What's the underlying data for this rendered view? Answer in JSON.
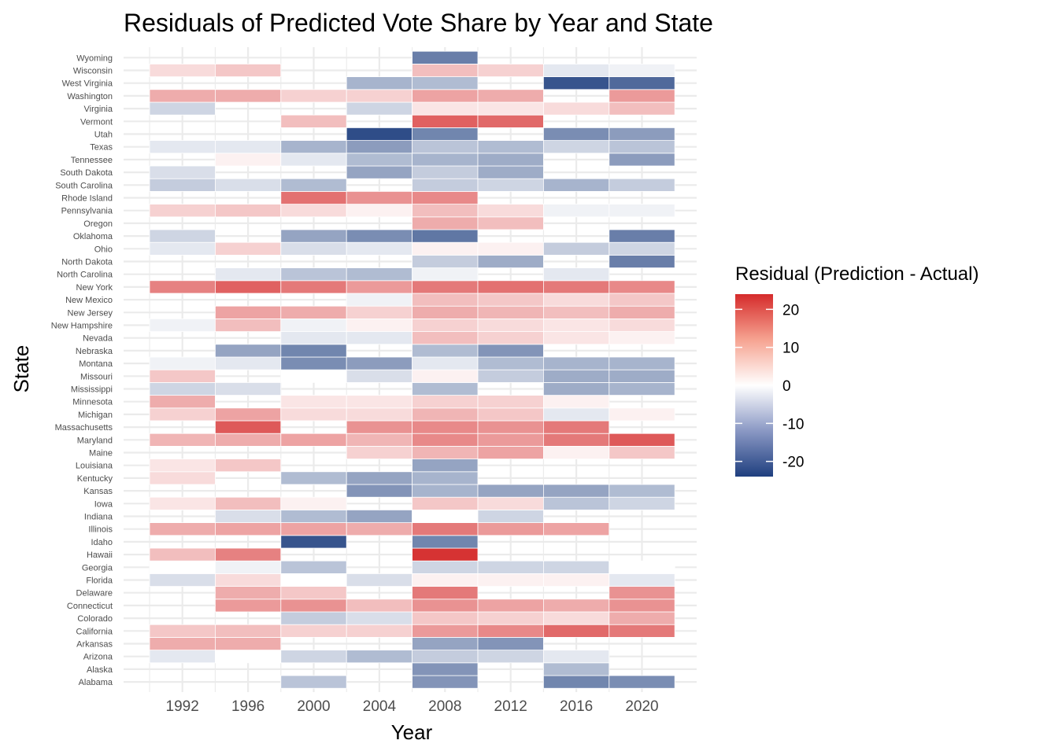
{
  "chart_data": {
    "type": "heatmap",
    "title": "Residuals of Predicted Vote Share by Year and State",
    "xlabel": "Year",
    "ylabel": "State",
    "legend_title": "Residual (Prediction - Actual)",
    "legend_ticks": [
      20,
      10,
      0,
      -10,
      -20
    ],
    "legend_tick_labels": [
      "20",
      "10",
      "0",
      "-10",
      "-20"
    ],
    "value_range": [
      -24,
      24
    ],
    "colors": {
      "low": "#1f3f7f",
      "mid": "#ffffff",
      "high": "#d52b2b"
    },
    "legend_placement": "right",
    "x": [
      "1992",
      "1996",
      "2000",
      "2004",
      "2008",
      "2012",
      "2016",
      "2020"
    ],
    "y": [
      "Alabama",
      "Alaska",
      "Arizona",
      "Arkansas",
      "California",
      "Colorado",
      "Connecticut",
      "Delaware",
      "Florida",
      "Georgia",
      "Hawaii",
      "Idaho",
      "Illinois",
      "Indiana",
      "Iowa",
      "Kansas",
      "Kentucky",
      "Louisiana",
      "Maine",
      "Maryland",
      "Massachusetts",
      "Michigan",
      "Minnesota",
      "Mississippi",
      "Missouri",
      "Montana",
      "Nebraska",
      "Nevada",
      "New Hampshire",
      "New Jersey",
      "New Mexico",
      "New York",
      "North Carolina",
      "North Dakota",
      "Ohio",
      "Oklahoma",
      "Oregon",
      "Pennsylvania",
      "Rhode Island",
      "South Carolina",
      "South Dakota",
      "Tennessee",
      "Texas",
      "Utah",
      "Vermont",
      "Virginia",
      "Washington",
      "West Virginia",
      "Wisconsin",
      "Wyoming"
    ],
    "values": {
      "Alabama": [
        null,
        null,
        -6,
        null,
        -12,
        null,
        -14,
        -13
      ],
      "Alaska": [
        null,
        null,
        null,
        null,
        -12,
        null,
        -7,
        null
      ],
      "Arizona": [
        -2,
        0,
        -4,
        -7,
        -5,
        -4,
        -2,
        null
      ],
      "Arkansas": [
        8,
        8,
        null,
        null,
        -10,
        -12,
        null,
        null
      ],
      "California": [
        5,
        6,
        4,
        4,
        10,
        12,
        16,
        14
      ],
      "Colorado": [
        null,
        null,
        -5,
        -3,
        5,
        4,
        3,
        8
      ],
      "Connecticut": [
        null,
        10,
        11,
        6,
        11,
        9,
        8,
        11
      ],
      "Delaware": [
        null,
        8,
        5,
        null,
        14,
        null,
        null,
        11
      ],
      "Florida": [
        -3,
        3,
        0,
        -3,
        1,
        1,
        1,
        -2
      ],
      "Georgia": [
        0,
        -1,
        -6,
        null,
        -4,
        -4,
        -4,
        0
      ],
      "Hawaii": [
        6,
        13,
        null,
        null,
        23,
        null,
        null,
        null
      ],
      "Idaho": [
        null,
        null,
        -21,
        null,
        -14,
        null,
        null,
        null
      ],
      "Illinois": [
        8,
        9,
        9,
        8,
        14,
        10,
        9,
        null
      ],
      "Indiana": [
        null,
        -3,
        -7,
        -10,
        0,
        -4,
        null,
        null
      ],
      "Iowa": [
        2,
        6,
        1,
        null,
        5,
        3,
        -6,
        -4
      ],
      "Kansas": [
        null,
        null,
        null,
        -12,
        -8,
        -10,
        -10,
        -7
      ],
      "Kentucky": [
        3,
        null,
        -7,
        -10,
        -8,
        null,
        null,
        null
      ],
      "Louisiana": [
        2,
        5,
        null,
        null,
        -10,
        null,
        null,
        null
      ],
      "Maine": [
        null,
        null,
        null,
        4,
        7,
        9,
        1,
        5
      ],
      "Maryland": [
        7,
        8,
        9,
        7,
        12,
        10,
        14,
        18
      ],
      "Massachusetts": [
        null,
        18,
        null,
        11,
        12,
        11,
        14,
        null
      ],
      "Michigan": [
        4,
        9,
        3,
        3,
        7,
        5,
        -2,
        1
      ],
      "Minnesota": [
        8,
        null,
        2,
        2,
        4,
        4,
        1,
        null
      ],
      "Mississippi": [
        -4,
        -3,
        null,
        null,
        -7,
        null,
        -9,
        -8
      ],
      "Missouri": [
        5,
        null,
        0,
        -3,
        1,
        -5,
        -9,
        -9
      ],
      "Montana": [
        -1,
        -2,
        -13,
        -11,
        -2,
        -7,
        -8,
        -8
      ],
      "Nebraska": [
        null,
        -10,
        -14,
        null,
        -7,
        -12,
        null,
        null
      ],
      "Nevada": [
        null,
        null,
        -2,
        -2,
        6,
        4,
        2,
        1
      ],
      "New Hampshire": [
        -1,
        6,
        -1,
        1,
        4,
        3,
        2,
        3
      ],
      "New Jersey": [
        null,
        9,
        8,
        4,
        8,
        7,
        6,
        8
      ],
      "New Mexico": [
        null,
        null,
        null,
        -1,
        6,
        5,
        3,
        5
      ],
      "New York": [
        13,
        17,
        14,
        10,
        14,
        15,
        14,
        12
      ],
      "North Carolina": [
        null,
        -2,
        -6,
        -7,
        -1,
        null,
        -2,
        null
      ],
      "North Dakota": [
        null,
        null,
        null,
        null,
        -5,
        -9,
        null,
        -15
      ],
      "Ohio": [
        -2,
        4,
        -3,
        -2,
        1,
        1,
        -5,
        -4
      ],
      "Oklahoma": [
        -4,
        null,
        -10,
        -13,
        -16,
        null,
        null,
        -15
      ],
      "Oregon": [
        null,
        null,
        null,
        null,
        8,
        6,
        null,
        null
      ],
      "Pennsylvania": [
        4,
        5,
        3,
        1,
        6,
        3,
        -1,
        -1
      ],
      "Rhode Island": [
        null,
        null,
        15,
        11,
        12,
        null,
        null,
        null
      ],
      "South Carolina": [
        -5,
        -3,
        -7,
        null,
        -5,
        -4,
        -8,
        -5
      ],
      "South Dakota": [
        -3,
        null,
        null,
        -10,
        -5,
        -9,
        null,
        null
      ],
      "Tennessee": [
        null,
        1,
        -2,
        -7,
        -8,
        -9,
        null,
        -11
      ],
      "Texas": [
        -2,
        -2,
        -8,
        -11,
        -6,
        -7,
        -4,
        -6
      ],
      "Utah": [
        null,
        null,
        null,
        -22,
        -14,
        null,
        -13,
        -11
      ],
      "Vermont": [
        null,
        null,
        6,
        null,
        17,
        16,
        null,
        null
      ],
      "Virginia": [
        -4,
        null,
        null,
        -4,
        2,
        2,
        3,
        6
      ],
      "Washington": [
        8,
        8,
        4,
        4,
        9,
        8,
        null,
        10
      ],
      "West Virginia": [
        null,
        null,
        null,
        -8,
        -7,
        null,
        -21,
        -18
      ],
      "Wisconsin": [
        3,
        5,
        null,
        null,
        6,
        4,
        -2,
        -1
      ],
      "Wyoming": [
        null,
        null,
        null,
        null,
        -15,
        null,
        null,
        null
      ]
    }
  }
}
